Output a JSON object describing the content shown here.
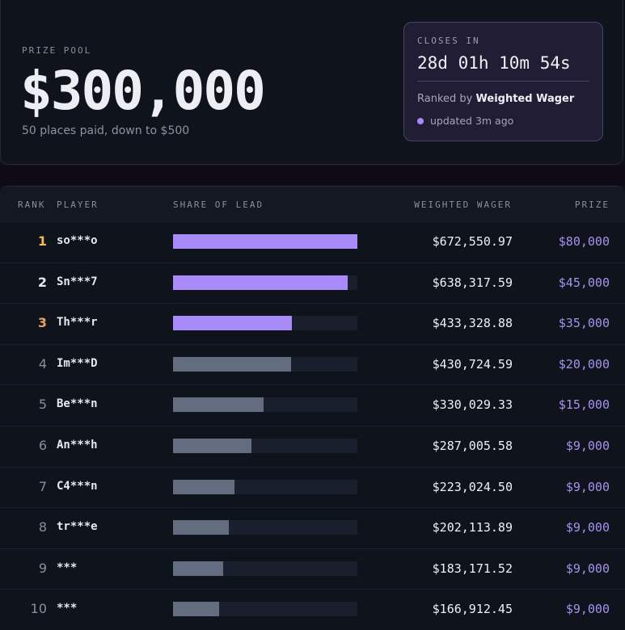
{
  "header": {
    "pool_label": "PRIZE POOL",
    "pool_amount": "$300,000",
    "pool_sub": "50 places paid, down to $500"
  },
  "closes": {
    "label": "CLOSES IN",
    "timer": "28d 01h 10m 54s",
    "ranked_by_prefix": "Ranked by",
    "ranked_by_metric": "Weighted Wager",
    "updated": "updated 3m ago"
  },
  "table": {
    "columns": {
      "rank": "RANK",
      "player": "PLAYER",
      "share": "SHARE OF LEAD",
      "wager": "WEIGHTED WAGER",
      "prize": "PRIZE"
    },
    "rows": [
      {
        "rank": "1",
        "player": "so***o",
        "share": 1.0,
        "wager": "$672,550.97",
        "prize": "$80,000"
      },
      {
        "rank": "2",
        "player": "Sn***7",
        "share": 0.949,
        "wager": "$638,317.59",
        "prize": "$45,000"
      },
      {
        "rank": "3",
        "player": "Th***r",
        "share": 0.644,
        "wager": "$433,328.88",
        "prize": "$35,000"
      },
      {
        "rank": "4",
        "player": "Im***D",
        "share": 0.64,
        "wager": "$430,724.59",
        "prize": "$20,000"
      },
      {
        "rank": "5",
        "player": "Be***n",
        "share": 0.491,
        "wager": "$330,029.33",
        "prize": "$15,000"
      },
      {
        "rank": "6",
        "player": "An***h",
        "share": 0.427,
        "wager": "$287,005.58",
        "prize": "$9,000"
      },
      {
        "rank": "7",
        "player": "C4***n",
        "share": 0.332,
        "wager": "$223,024.50",
        "prize": "$9,000"
      },
      {
        "rank": "8",
        "player": "tr***e",
        "share": 0.301,
        "wager": "$202,113.89",
        "prize": "$9,000"
      },
      {
        "rank": "9",
        "player": "***",
        "share": 0.272,
        "wager": "$183,171.52",
        "prize": "$9,000"
      },
      {
        "rank": "10",
        "player": "***",
        "share": 0.248,
        "wager": "$166,912.45",
        "prize": "$9,000"
      }
    ]
  },
  "colors": {
    "gold": "#f3b75b",
    "silver": "#e6e8ef",
    "bronze": "#e3a26a",
    "bar_top": "#a88bf8",
    "bar_rest": "#646c80",
    "prize": "#a592f0"
  }
}
